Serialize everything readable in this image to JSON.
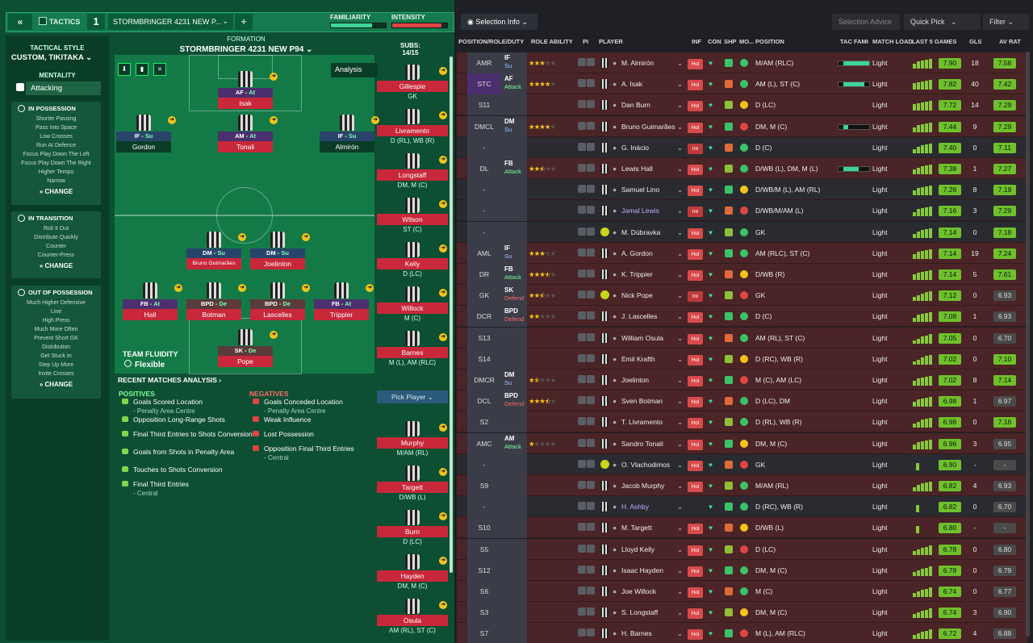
{
  "topbar": {
    "tactics": "TACTICS",
    "tactic_num": "1",
    "tactic_name": "STORMBRINGER 4231 NEW P...",
    "familiarity": "FAMILIARITY",
    "intensity": "INTENSITY",
    "familiarity_level": 0.75,
    "intensity_level": 0.9
  },
  "sidebar": {
    "style_label": "TACTICAL STYLE",
    "style_value": "CUSTOM, TIKITAKA",
    "mentality_label": "MENTALITY",
    "mentality_value": "Attacking",
    "in_possession": {
      "title": "IN POSSESSION",
      "items": [
        "Shorter Passing",
        "Pass Into Space",
        "Low Crosses",
        "Run At Defence",
        "Focus Play Down The Left",
        "Focus Play Down The Right",
        "Higher Tempo",
        "Narrow"
      ]
    },
    "in_transition": {
      "title": "IN TRANSITION",
      "items": [
        "Roll It Out",
        "Distribute Quickly",
        "Counter",
        "Counter-Press"
      ]
    },
    "out_possession": {
      "title": "OUT OF POSSESSION",
      "items": [
        "Much Higher Defensive",
        "Line",
        "High Press",
        "Much More Often",
        "Prevent Short GK",
        "Distribution",
        "Get Stuck In",
        "Step Up More",
        "Invite Crosses"
      ]
    },
    "change": "CHANGE"
  },
  "formation": {
    "label": "FORMATION",
    "name": "STORMBRINGER 4231 NEW P94",
    "analysis": "Analysis",
    "team_fluidity": "TEAM FLUIDITY",
    "fluidity": "Flexible"
  },
  "pitch": [
    {
      "role": "AF",
      "duty": "At",
      "name": "Isak"
    },
    {
      "role": "IF",
      "duty": "Su",
      "name": "Gordon"
    },
    {
      "role": "AM",
      "duty": "At",
      "name": "Tonali"
    },
    {
      "role": "IF",
      "duty": "Su",
      "name": "Almirón"
    },
    {
      "role": "DM",
      "duty": "Su",
      "name": "Bruno Guimarães"
    },
    {
      "role": "DM",
      "duty": "Su",
      "name": "Joelinton"
    },
    {
      "role": "FB",
      "duty": "At",
      "name": "Hall"
    },
    {
      "role": "BPD",
      "duty": "De",
      "name": "Botman"
    },
    {
      "role": "BPD",
      "duty": "De",
      "name": "Lascelles"
    },
    {
      "role": "FB",
      "duty": "At",
      "name": "Trippier"
    },
    {
      "role": "SK",
      "duty": "De",
      "name": "Pope"
    }
  ],
  "recent": {
    "title": "RECENT MATCHES ANALYSIS ›",
    "positives_label": "POSITIVES",
    "negatives_label": "NEGATIVES",
    "positives": [
      {
        "t": "Goals Scored Location",
        "s": "- Penalty Area Centre"
      },
      {
        "t": "Opposition Long-Range Shots",
        "s": ""
      },
      {
        "t": "Final Third Entries to Shots Conversion",
        "s": ""
      },
      {
        "t": "Goals from Shots in Penalty Area",
        "s": ""
      },
      {
        "t": "Touches to Shots Conversion",
        "s": ""
      },
      {
        "t": "Final Third Entries",
        "s": "- Central"
      }
    ],
    "negatives": [
      {
        "t": "Goals Conceded Location",
        "s": "- Penalty Area Centre"
      },
      {
        "t": "Weak Influence",
        "s": ""
      },
      {
        "t": "Lost Possession",
        "s": ""
      },
      {
        "t": "Opposition Final Third Entries",
        "s": "- Central"
      }
    ]
  },
  "subs": {
    "label": "SUBS:",
    "count": "14/15",
    "pick": "Pick Player",
    "list": [
      {
        "n": "Gillespie",
        "p": "GK"
      },
      {
        "n": "Livramento",
        "p": "D (RL), WB (R)"
      },
      {
        "n": "Longstaff",
        "p": "DM, M (C)"
      },
      {
        "n": "Wilson",
        "p": "ST (C)"
      },
      {
        "n": "Kelly",
        "p": "D (LC)"
      },
      {
        "n": "Willock",
        "p": "M (C)"
      },
      {
        "n": "Barnes",
        "p": "M (L), AM (RLC)"
      }
    ],
    "list2": [
      {
        "n": "Murphy",
        "p": "M/AM (RL)"
      },
      {
        "n": "Targett",
        "p": "D/WB (L)"
      },
      {
        "n": "Burn",
        "p": "D (LC)"
      },
      {
        "n": "Hayden",
        "p": "DM, M (C)"
      },
      {
        "n": "Osula",
        "p": "AM (RL), ST (C)"
      }
    ]
  },
  "right": {
    "selection_info": "Selection Info",
    "selection_advice": "Selection Advice",
    "quick_pick": "Quick Pick",
    "filter": "Filter",
    "headers": {
      "pos": "POSITION/ROLE/DUTY",
      "ability": "ROLE ABILITY",
      "pi": "PI",
      "player": "PLAYER",
      "inf": "INF",
      "con": "CON",
      "shp": "SHP",
      "mo": "MO...",
      "position": "POSITION",
      "tacf": "TAC FAMI",
      "load": "MATCH LOAD",
      "last5": "LAST 5 GAMES",
      "gls": "GLS",
      "avr": "AV RAT"
    },
    "rows": [
      {
        "p": "AMR",
        "r": "IF",
        "d": "Su",
        "st": 3,
        "n": "M. Almirón",
        "pos": "M/AM (RLC)",
        "load": "Light",
        "rat": "7.90",
        "gls": "18",
        "av": "7.58",
        "inf": "Hol",
        "tf": 1
      },
      {
        "p": "STC",
        "r": "AF",
        "d": "Attack",
        "st": 4,
        "n": "A. Isak",
        "pos": "AM (L), ST (C)",
        "load": "Light",
        "rat": "7.82",
        "gls": "40",
        "av": "7.42",
        "inf": "Hol",
        "tf": 0.8
      },
      {
        "p": "S11",
        "n": "Dan Burn",
        "pos": "D (LC)",
        "load": "Light",
        "rat": "7.72",
        "gls": "14",
        "av": "7.29",
        "inf": "Hol"
      },
      {
        "p": "DMCL",
        "r": "DM",
        "d": "Su",
        "st": 4,
        "n": "Bruno Guimarães",
        "pos": "DM, M (C)",
        "load": "Light",
        "rat": "7.44",
        "gls": "9",
        "av": "7.29",
        "inf": "Hol",
        "tf": 0.2
      },
      {
        "p": "-",
        "n": "G. Inácio",
        "pos": "D (C)",
        "load": "Light",
        "rat": "7.40",
        "gls": "0",
        "av": "7.11",
        "inf": "Int"
      },
      {
        "p": "DL",
        "r": "FB",
        "d": "Attack",
        "st": 2.5,
        "n": "Lewis Hall",
        "pos": "D/WB (L), DM, M (L)",
        "load": "Light",
        "rat": "7.38",
        "gls": "1",
        "av": "7.27",
        "inf": "Hol",
        "tf": 0.6
      },
      {
        "p": "-",
        "n": "Samuel Lino",
        "pos": "D/WB/M (L), AM (RL)",
        "load": "Light",
        "rat": "7.26",
        "gls": "8",
        "av": "7.19",
        "inf": "Hol"
      },
      {
        "p": "-",
        "n": "Jamal Lewis",
        "pos": "D/WB/M/AM (L)",
        "load": "Light",
        "rat": "7.16",
        "gls": "3",
        "av": "7.29",
        "inf": "Int",
        "pur": true
      },
      {
        "p": "-",
        "n": "M. Dúbravka",
        "pos": "GK",
        "load": "Light",
        "rat": "7.14",
        "gls": "0",
        "av": "7.18",
        "inf": "Hol",
        "gk": true
      },
      {
        "p": "AML",
        "r": "IF",
        "d": "Su",
        "st": 3,
        "n": "A. Gordon",
        "pos": "AM (RLC), ST (C)",
        "load": "Light",
        "rat": "7.14",
        "gls": "19",
        "av": "7.24",
        "inf": "Hol"
      },
      {
        "p": "DR",
        "r": "FB",
        "d": "Attack",
        "st": 3.5,
        "n": "K. Trippier",
        "pos": "D/WB (R)",
        "load": "Light",
        "rat": "7.14",
        "gls": "5",
        "av": "7.61",
        "inf": "Hol"
      },
      {
        "p": "GK",
        "r": "SK",
        "d": "Defend",
        "st": 2.5,
        "n": "Nick Pope",
        "pos": "GK",
        "load": "Light",
        "rat": "7.12",
        "gls": "0",
        "av": "6.93",
        "inf": "Int",
        "gk": true
      },
      {
        "p": "DCR",
        "r": "BPD",
        "d": "Defend",
        "st": 2,
        "n": "J. Lascelles",
        "pos": "D (C)",
        "load": "Light",
        "rat": "7.08",
        "gls": "1",
        "av": "6.93",
        "inf": "Hol"
      },
      {
        "p": "S13",
        "n": "William Osula",
        "pos": "AM (RL), ST (C)",
        "load": "Light",
        "rat": "7.05",
        "gls": "0",
        "av": "6.70",
        "inf": "Hol"
      },
      {
        "p": "S14",
        "n": "Emil Krafth",
        "pos": "D (RC), WB (R)",
        "load": "Light",
        "rat": "7.02",
        "gls": "0",
        "av": "7.10",
        "inf": "Hol"
      },
      {
        "p": "DMCR",
        "r": "DM",
        "d": "Su",
        "st": 1.5,
        "n": "Joelinton",
        "pos": "M (C), AM (LC)",
        "load": "Light",
        "rat": "7.02",
        "gls": "8",
        "av": "7.14",
        "inf": "Hol"
      },
      {
        "p": "DCL",
        "r": "BPD",
        "d": "Defend",
        "st": 3.5,
        "n": "Sven Botman",
        "pos": "D (LC), DM",
        "load": "Light",
        "rat": "6.98",
        "gls": "1",
        "av": "6.97",
        "inf": "Hol"
      },
      {
        "p": "S2",
        "n": "T. Livramento",
        "pos": "D (RL), WB (R)",
        "load": "Light",
        "rat": "6.98",
        "gls": "0",
        "av": "7.16",
        "inf": "Hol"
      },
      {
        "p": "AMC",
        "r": "AM",
        "d": "Attack",
        "st": 1,
        "n": "Sandro Tonali",
        "pos": "DM, M (C)",
        "load": "Light",
        "rat": "6.96",
        "gls": "3",
        "av": "6.95",
        "inf": "Hol"
      },
      {
        "p": "-",
        "n": "O. Vlachodimos",
        "pos": "GK",
        "load": "Light",
        "rat": "6.90",
        "gls": "-",
        "av": "-",
        "inf": "Hol",
        "gk": true
      },
      {
        "p": "S9",
        "n": "Jacob Murphy",
        "pos": "M/AM (RL)",
        "load": "Light",
        "rat": "6.82",
        "gls": "4",
        "av": "6.93",
        "inf": "Hol"
      },
      {
        "p": "-",
        "n": "H. Ashby",
        "pos": "D (RC), WB (R)",
        "load": "Light",
        "rat": "6.82",
        "gls": "0",
        "av": "6.70",
        "inf": "",
        "pur": true
      },
      {
        "p": "S10",
        "n": "M. Targett",
        "pos": "D/WB (L)",
        "load": "Light",
        "rat": "6.80",
        "gls": "-",
        "av": "-",
        "inf": "Hol"
      },
      {
        "p": "S5",
        "n": "Lloyd Kelly",
        "pos": "D (LC)",
        "load": "Light",
        "rat": "6.78",
        "gls": "0",
        "av": "6.80",
        "inf": "Hol"
      },
      {
        "p": "S12",
        "n": "Isaac Hayden",
        "pos": "DM, M (C)",
        "load": "Light",
        "rat": "6.78",
        "gls": "0",
        "av": "6.79",
        "inf": "Hol"
      },
      {
        "p": "S6",
        "n": "Joe Willock",
        "pos": "M (C)",
        "load": "Light",
        "rat": "6.74",
        "gls": "0",
        "av": "6.77",
        "inf": "Hol"
      },
      {
        "p": "S3",
        "n": "S. Longstaff",
        "pos": "DM, M (C)",
        "load": "Light",
        "rat": "6.74",
        "gls": "3",
        "av": "6.90",
        "inf": "Hol"
      },
      {
        "p": "S7",
        "n": "H. Barnes",
        "pos": "M (L), AM (RLC)",
        "load": "Light",
        "rat": "6.72",
        "gls": "4",
        "av": "6.88",
        "inf": "Hol"
      }
    ]
  }
}
